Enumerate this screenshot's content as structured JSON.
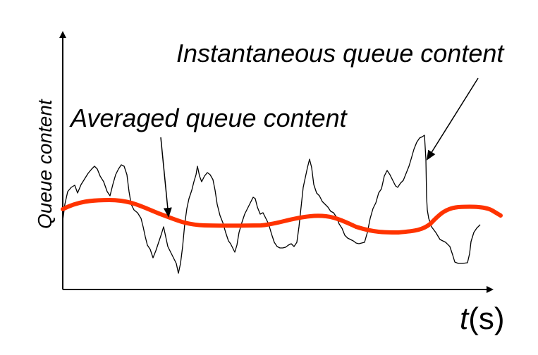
{
  "labels": {
    "instantaneous": "Instantaneous queue content",
    "averaged": "Averaged queue content",
    "y_axis": "Queue content",
    "x_axis_var": "t",
    "x_axis_unit": "(s)"
  },
  "colors": {
    "instantaneous_line": "#000000",
    "averaged_line": "#ff3300",
    "axes": "#000000",
    "background": "#ffffff"
  }
}
